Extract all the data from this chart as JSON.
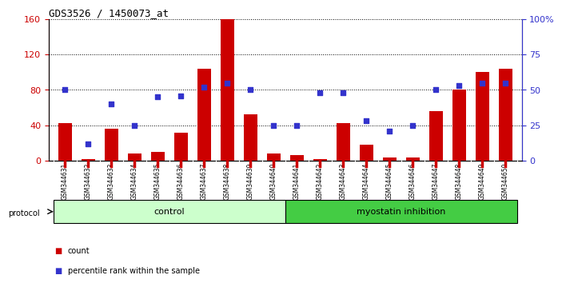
{
  "title": "GDS3526 / 1450073_at",
  "samples": [
    "GSM344631",
    "GSM344632",
    "GSM344633",
    "GSM344634",
    "GSM344635",
    "GSM344636",
    "GSM344637",
    "GSM344638",
    "GSM344639",
    "GSM344640",
    "GSM344641",
    "GSM344642",
    "GSM344643",
    "GSM344644",
    "GSM344645",
    "GSM344646",
    "GSM344647",
    "GSM344648",
    "GSM344649",
    "GSM344650"
  ],
  "counts": [
    42,
    2,
    36,
    8,
    10,
    32,
    104,
    160,
    52,
    8,
    6,
    2,
    42,
    18,
    4,
    4,
    56,
    80,
    100,
    104
  ],
  "percentiles": [
    50,
    12,
    40,
    25,
    45,
    46,
    52,
    55,
    50,
    25,
    25,
    48,
    48,
    28,
    21,
    25,
    50,
    53,
    55,
    55
  ],
  "control_count": 10,
  "bar_color": "#cc0000",
  "dot_color": "#3333cc",
  "ylim_left": [
    0,
    160
  ],
  "ylim_right": [
    0,
    100
  ],
  "yticks_left": [
    0,
    40,
    80,
    120,
    160
  ],
  "ytick_labels_left": [
    "0",
    "40",
    "80",
    "120",
    "160"
  ],
  "yticks_right": [
    0,
    25,
    50,
    75,
    100
  ],
  "ytick_labels_right": [
    "0",
    "25",
    "50",
    "75",
    "100%"
  ],
  "control_label": "control",
  "treatment_label": "myostatin inhibition",
  "protocol_label": "protocol",
  "legend_count_label": "count",
  "legend_pct_label": "percentile rank within the sample",
  "bg_color": "#ffffff",
  "tick_label_color_left": "#cc0000",
  "tick_label_color_right": "#3333cc",
  "control_bg": "#ccffcc",
  "treatment_bg": "#44cc44",
  "sample_bg": "#cccccc"
}
